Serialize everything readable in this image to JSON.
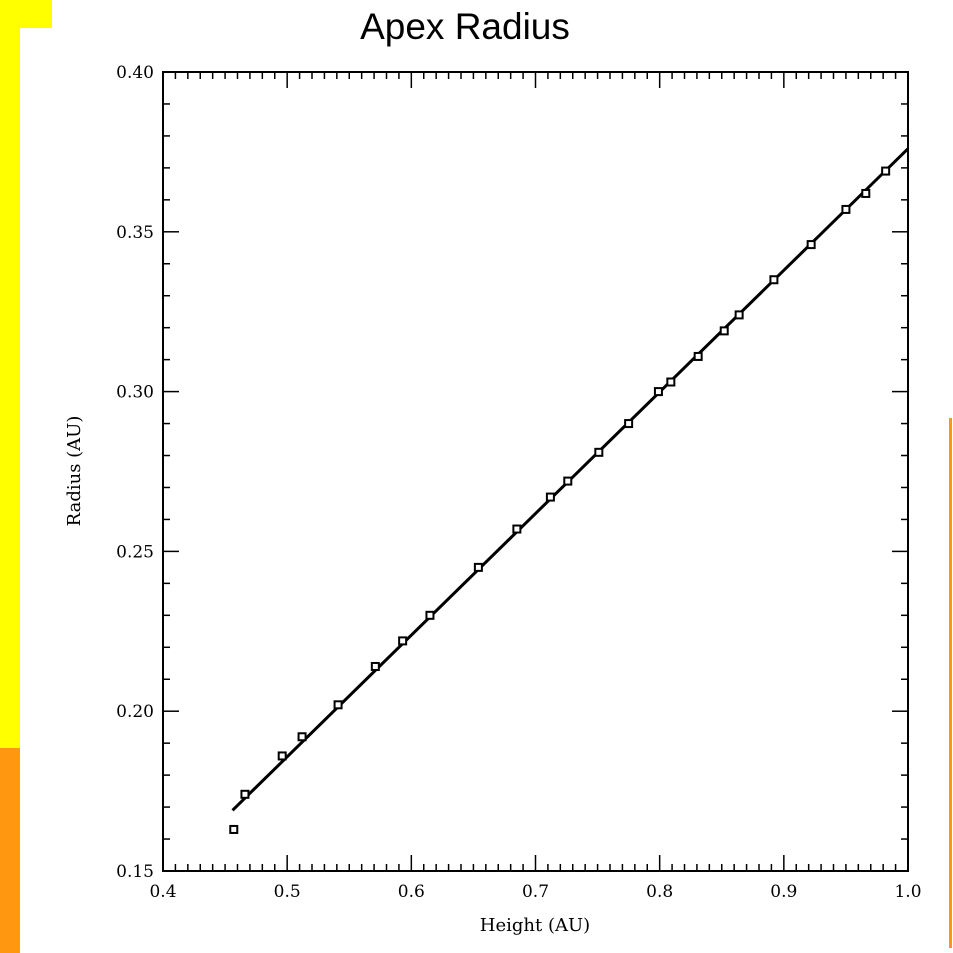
{
  "colors": {
    "yellow_bar": "#ffff00",
    "orange_bar": "#ff9810",
    "orange_line": "#ff9810",
    "ink": "#000000"
  },
  "chart_data": {
    "type": "scatter",
    "title": "Apex Radius",
    "xlabel": "Height (AU)",
    "ylabel": "Radius (AU)",
    "xlim": [
      0.4,
      1.0
    ],
    "ylim": [
      0.15,
      0.4
    ],
    "grid": false,
    "x_ticks": [
      "0.4",
      "0.5",
      "0.6",
      "0.7",
      "0.8",
      "0.9",
      "1.0"
    ],
    "y_ticks": [
      "0.15",
      "0.20",
      "0.25",
      "0.30",
      "0.35",
      "0.40"
    ],
    "series": [
      {
        "marker": "square",
        "points": [
          [
            0.457,
            0.163
          ],
          [
            0.466,
            0.174
          ],
          [
            0.496,
            0.186
          ],
          [
            0.512,
            0.192
          ],
          [
            0.541,
            0.202
          ],
          [
            0.571,
            0.214
          ],
          [
            0.593,
            0.222
          ],
          [
            0.615,
            0.23
          ],
          [
            0.654,
            0.245
          ],
          [
            0.685,
            0.257
          ],
          [
            0.712,
            0.267
          ],
          [
            0.726,
            0.272
          ],
          [
            0.751,
            0.281
          ],
          [
            0.775,
            0.29
          ],
          [
            0.799,
            0.3
          ],
          [
            0.809,
            0.303
          ],
          [
            0.831,
            0.311
          ],
          [
            0.852,
            0.319
          ],
          [
            0.864,
            0.324
          ],
          [
            0.892,
            0.335
          ],
          [
            0.922,
            0.346
          ],
          [
            0.95,
            0.357
          ],
          [
            0.966,
            0.362
          ],
          [
            0.982,
            0.369
          ]
        ]
      },
      {
        "style": "line",
        "points": [
          [
            0.456,
            0.169
          ],
          [
            1.0,
            0.376
          ]
        ]
      }
    ]
  }
}
